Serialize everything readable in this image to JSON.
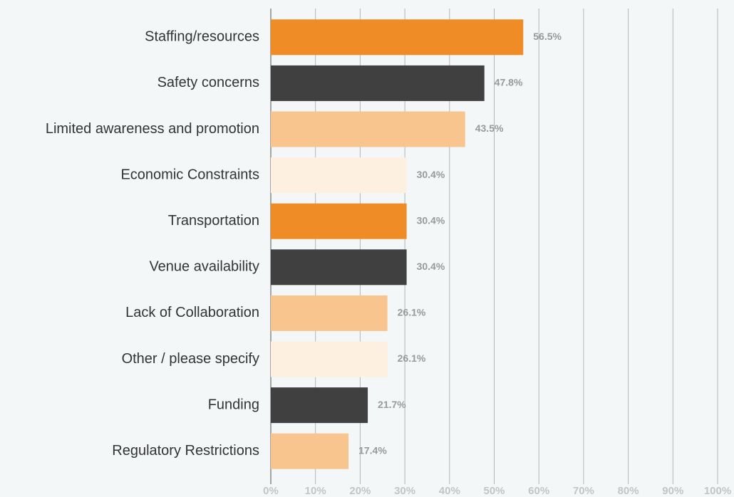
{
  "chart_data": {
    "type": "bar",
    "orientation": "horizontal",
    "categories": [
      "Staffing/resources",
      "Safety concerns",
      "Limited awareness and promotion",
      "Economic Constraints",
      "Transportation",
      "Venue availability",
      "Lack of Collaboration",
      "Other / please specify",
      "Funding",
      "Regulatory Restrictions"
    ],
    "values": [
      56.5,
      47.8,
      43.5,
      30.4,
      30.4,
      30.4,
      26.1,
      26.1,
      21.7,
      17.4
    ],
    "value_labels": [
      "56.5%",
      "47.8%",
      "43.5%",
      "30.4%",
      "30.4%",
      "30.4%",
      "26.1%",
      "26.1%",
      "21.7%",
      "17.4%"
    ],
    "colors": [
      "#f08c25",
      "#404040",
      "#f8c58f",
      "#fdf0e1",
      "#f08c25",
      "#404040",
      "#f8c58f",
      "#fdf0e1",
      "#404040",
      "#f8c58f"
    ],
    "xlim": [
      0,
      100
    ],
    "xticks": [
      {
        "value": 0,
        "label": "0%"
      },
      {
        "value": 10,
        "label": "10%"
      },
      {
        "value": 20,
        "label": "20%"
      },
      {
        "value": 30,
        "label": "30%"
      },
      {
        "value": 40,
        "label": "40%"
      },
      {
        "value": 50,
        "label": "50%"
      },
      {
        "value": 60,
        "label": "60%"
      },
      {
        "value": 70,
        "label": "70%"
      },
      {
        "value": 80,
        "label": "80%"
      },
      {
        "value": 90,
        "label": "90%"
      },
      {
        "value": 100,
        "label": "100%"
      }
    ],
    "grid": true
  }
}
